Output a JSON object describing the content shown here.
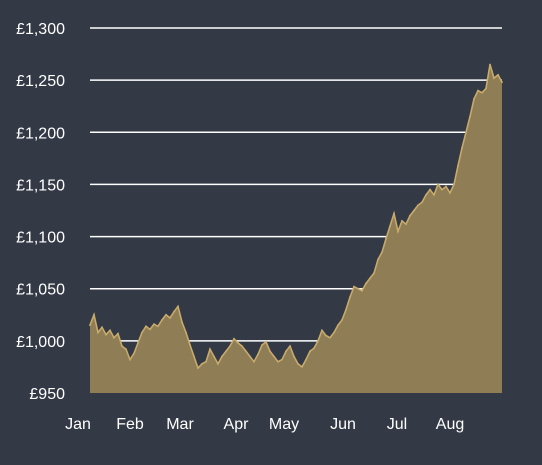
{
  "colors": {
    "background": "#333a46",
    "area_fill": "#8f7d55",
    "area_line": "#c8aa6a",
    "grid": "#ffffff",
    "text": "#ffffff"
  },
  "chart_data": {
    "type": "area",
    "title": "",
    "xlabel": "",
    "ylabel": "",
    "grid": true,
    "legend": "none",
    "ylim": [
      950,
      1300
    ],
    "y_ticks": [
      950,
      1000,
      1050,
      1100,
      1150,
      1200,
      1250,
      1300
    ],
    "y_tick_labels": [
      "£950",
      "£1,000",
      "£1,050",
      "£1,100",
      "£1,150",
      "£1,200",
      "£1,250",
      "£1,300"
    ],
    "x_tick_labels": [
      "Jan",
      "Feb",
      "Mar",
      "Apr",
      "May",
      "Jun",
      "Jul",
      "Aug"
    ],
    "xlim": [
      "Jan",
      "end of Aug"
    ],
    "series": [
      {
        "points": [
          [
            "Jan",
            1015
          ],
          [
            "Jan",
            1025
          ],
          [
            "Jan",
            1008
          ],
          [
            "Jan",
            1013
          ],
          [
            "Jan",
            1006
          ],
          [
            "Jan",
            1010
          ],
          [
            "Jan",
            1003
          ],
          [
            "Jan",
            1007
          ],
          [
            "Jan",
            995
          ],
          [
            "Jan",
            992
          ],
          [
            "Feb",
            982
          ],
          [
            "Feb",
            988
          ],
          [
            "Feb",
            998
          ],
          [
            "Feb",
            1008
          ],
          [
            "Feb",
            1014
          ],
          [
            "Feb",
            1011
          ],
          [
            "Feb",
            1016
          ],
          [
            "Feb",
            1014
          ],
          [
            "Feb",
            1020
          ],
          [
            "Feb",
            1025
          ],
          [
            "Feb",
            1022
          ],
          [
            "Feb",
            1028
          ],
          [
            "Feb",
            1033
          ],
          [
            "Mar",
            1018
          ],
          [
            "Mar",
            1008
          ],
          [
            "Mar",
            996
          ],
          [
            "Mar",
            985
          ],
          [
            "Mar",
            974
          ],
          [
            "Mar",
            978
          ],
          [
            "Mar",
            980
          ],
          [
            "Mar",
            992
          ],
          [
            "Mar",
            985
          ],
          [
            "Mar",
            978
          ],
          [
            "Mar",
            985
          ],
          [
            "Mar",
            990
          ],
          [
            "Apr",
            995
          ],
          [
            "Apr",
            1002
          ],
          [
            "Apr",
            998
          ],
          [
            "Apr",
            995
          ],
          [
            "Apr",
            990
          ],
          [
            "Apr",
            985
          ],
          [
            "Apr",
            980
          ],
          [
            "Apr",
            987
          ],
          [
            "Apr",
            996
          ],
          [
            "Apr",
            999
          ],
          [
            "May",
            990
          ],
          [
            "May",
            985
          ],
          [
            "May",
            980
          ],
          [
            "May",
            982
          ],
          [
            "May",
            990
          ],
          [
            "May",
            995
          ],
          [
            "May",
            985
          ],
          [
            "May",
            978
          ],
          [
            "May",
            975
          ],
          [
            "May",
            982
          ],
          [
            "May",
            990
          ],
          [
            "May",
            993
          ],
          [
            "Jun",
            1000
          ],
          [
            "Jun",
            1010
          ],
          [
            "Jun",
            1005
          ],
          [
            "Jun",
            1003
          ],
          [
            "Jun",
            1008
          ],
          [
            "Jun",
            1015
          ],
          [
            "Jun",
            1020
          ],
          [
            "Jun",
            1030
          ],
          [
            "Jun",
            1042
          ],
          [
            "Jun",
            1052
          ],
          [
            "Jun",
            1050
          ],
          [
            "Jun",
            1048
          ],
          [
            "Jun",
            1055
          ],
          [
            "Jul",
            1060
          ],
          [
            "Jul",
            1065
          ],
          [
            "Jul",
            1078
          ],
          [
            "Jul",
            1085
          ],
          [
            "Jul",
            1098
          ],
          [
            "Jul",
            1110
          ],
          [
            "Jul",
            1122
          ],
          [
            "Jul",
            1105
          ],
          [
            "Jul",
            1115
          ],
          [
            "Jul",
            1112
          ],
          [
            "Jul",
            1120
          ],
          [
            "Jul",
            1125
          ],
          [
            "Jul",
            1130
          ],
          [
            "Jul",
            1133
          ],
          [
            "Aug",
            1140
          ],
          [
            "Aug",
            1145
          ],
          [
            "Aug",
            1140
          ],
          [
            "Aug",
            1150
          ],
          [
            "Aug",
            1145
          ],
          [
            "Aug",
            1148
          ],
          [
            "Aug",
            1142
          ],
          [
            "Aug",
            1150
          ],
          [
            "Aug",
            1168
          ],
          [
            "Aug",
            1185
          ],
          [
            "Aug",
            1200
          ],
          [
            "Aug",
            1215
          ],
          [
            "Aug",
            1232
          ],
          [
            "Aug",
            1240
          ],
          [
            "Aug",
            1238
          ],
          [
            "Aug",
            1242
          ],
          [
            "Aug",
            1265
          ],
          [
            "Aug",
            1252
          ],
          [
            "Aug",
            1255
          ],
          [
            "Aug",
            1248
          ]
        ]
      }
    ]
  }
}
